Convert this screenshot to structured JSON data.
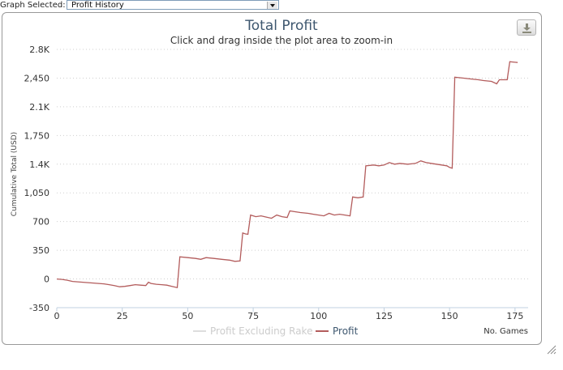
{
  "graph_selector": {
    "label": "Graph Selected:",
    "value": "Profit History"
  },
  "chart_data": {
    "type": "line",
    "title": "Total Profit",
    "subtitle": "Click and drag inside the plot area to zoom-in",
    "xlabel": "No. Games",
    "ylabel": "Cumulative Total (USD)",
    "xlim": [
      0,
      180
    ],
    "ylim": [
      -350,
      2800
    ],
    "xticks": [
      0,
      25,
      50,
      75,
      100,
      125,
      150,
      175
    ],
    "xtick_labels": [
      "0",
      "25",
      "50",
      "75",
      "100",
      "125",
      "150",
      "175"
    ],
    "yticks": [
      -350,
      0,
      350,
      700,
      1050,
      1400,
      1750,
      2100,
      2450,
      2800
    ],
    "ytick_labels": [
      "-350",
      "0",
      "350",
      "700",
      "1,050",
      "1.4K",
      "1,750",
      "2.1K",
      "2,450",
      "2.8K"
    ],
    "grid": true,
    "legend": "bottom-center",
    "series": [
      {
        "name": "Profit Excluding Rake",
        "color": "#dddddd",
        "values": []
      },
      {
        "name": "Profit",
        "color": "#b35c5c",
        "points": [
          [
            0,
            0
          ],
          [
            2,
            -5
          ],
          [
            4,
            -15
          ],
          [
            6,
            -30
          ],
          [
            8,
            -35
          ],
          [
            10,
            -40
          ],
          [
            12,
            -45
          ],
          [
            14,
            -50
          ],
          [
            16,
            -55
          ],
          [
            18,
            -60
          ],
          [
            20,
            -70
          ],
          [
            22,
            -80
          ],
          [
            24,
            -95
          ],
          [
            26,
            -90
          ],
          [
            28,
            -80
          ],
          [
            30,
            -70
          ],
          [
            32,
            -75
          ],
          [
            34,
            -80
          ],
          [
            35,
            -40
          ],
          [
            36,
            -55
          ],
          [
            38,
            -65
          ],
          [
            40,
            -70
          ],
          [
            42,
            -75
          ],
          [
            44,
            -90
          ],
          [
            46,
            -105
          ],
          [
            47,
            270
          ],
          [
            50,
            260
          ],
          [
            53,
            250
          ],
          [
            55,
            240
          ],
          [
            57,
            260
          ],
          [
            60,
            250
          ],
          [
            63,
            240
          ],
          [
            66,
            230
          ],
          [
            68,
            215
          ],
          [
            70,
            220
          ],
          [
            71,
            560
          ],
          [
            72,
            550
          ],
          [
            73,
            545
          ],
          [
            74,
            780
          ],
          [
            76,
            760
          ],
          [
            78,
            770
          ],
          [
            80,
            755
          ],
          [
            82,
            740
          ],
          [
            84,
            780
          ],
          [
            86,
            760
          ],
          [
            88,
            750
          ],
          [
            89,
            830
          ],
          [
            91,
            820
          ],
          [
            93,
            810
          ],
          [
            96,
            800
          ],
          [
            98,
            790
          ],
          [
            100,
            780
          ],
          [
            102,
            770
          ],
          [
            104,
            800
          ],
          [
            106,
            780
          ],
          [
            108,
            790
          ],
          [
            110,
            780
          ],
          [
            112,
            770
          ],
          [
            113,
            1000
          ],
          [
            115,
            990
          ],
          [
            117,
            1000
          ],
          [
            118,
            1380
          ],
          [
            121,
            1390
          ],
          [
            123,
            1380
          ],
          [
            125,
            1390
          ],
          [
            127,
            1420
          ],
          [
            129,
            1400
          ],
          [
            131,
            1410
          ],
          [
            134,
            1400
          ],
          [
            137,
            1410
          ],
          [
            139,
            1440
          ],
          [
            141,
            1420
          ],
          [
            143,
            1410
          ],
          [
            145,
            1400
          ],
          [
            147,
            1390
          ],
          [
            149,
            1380
          ],
          [
            150,
            1360
          ],
          [
            151,
            1350
          ],
          [
            152,
            2460
          ],
          [
            155,
            2450
          ],
          [
            158,
            2440
          ],
          [
            161,
            2430
          ],
          [
            163,
            2420
          ],
          [
            166,
            2410
          ],
          [
            168,
            2380
          ],
          [
            169,
            2430
          ],
          [
            172,
            2430
          ],
          [
            173,
            2650
          ],
          [
            176,
            2640
          ]
        ]
      }
    ]
  },
  "colors": {
    "title": "#3e576f",
    "line": "#b35c5c",
    "grid": "#dddddd"
  }
}
